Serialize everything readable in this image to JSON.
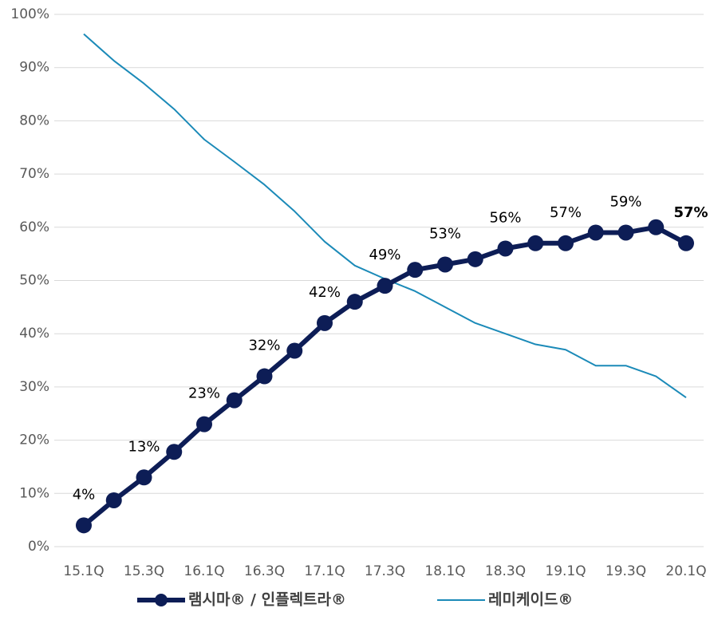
{
  "chart_data": {
    "type": "line",
    "categories": [
      "15.1Q",
      null,
      "15.3Q",
      null,
      "16.1Q",
      null,
      "16.3Q",
      null,
      "17.1Q",
      null,
      "17.3Q",
      null,
      "18.1Q",
      null,
      "18.3Q",
      null,
      "19.1Q",
      null,
      "19.3Q",
      null,
      "20.1Q"
    ],
    "series": [
      {
        "name": "램시마® / 인플렉트라®",
        "color": "#0d1d56",
        "values": [
          4,
          8.7,
          13,
          17.8,
          23,
          27.5,
          32,
          36.8,
          42,
          46,
          49,
          52,
          53,
          54,
          56,
          57,
          57,
          59,
          59,
          60,
          57
        ],
        "value_labels": [
          "4%",
          null,
          "13%",
          null,
          "23%",
          null,
          "32%",
          null,
          "42%",
          null,
          "49%",
          null,
          "53%",
          null,
          "56%",
          null,
          "57%",
          null,
          "59%",
          null,
          "57%"
        ]
      },
      {
        "name": "레미케이드®",
        "color": "#1b8ab8",
        "values": [
          96.3,
          91.3,
          87,
          82.2,
          76.5,
          72.3,
          68,
          63,
          57.3,
          52.8,
          50.3,
          48,
          45,
          42,
          40,
          38,
          37,
          34,
          34,
          32,
          28
        ]
      }
    ],
    "ylim": [
      0,
      100
    ],
    "yticks": [
      {
        "value": 0,
        "label": "0%"
      },
      {
        "value": 10,
        "label": "10%"
      },
      {
        "value": 20,
        "label": "20%"
      },
      {
        "value": 30,
        "label": "30%"
      },
      {
        "value": 40,
        "label": "40%"
      },
      {
        "value": 50,
        "label": "50%"
      },
      {
        "value": 60,
        "label": "60%"
      },
      {
        "value": 70,
        "label": "70%"
      },
      {
        "value": 80,
        "label": "80%"
      },
      {
        "value": 90,
        "label": "90%"
      },
      {
        "value": 100,
        "label": "100%"
      }
    ],
    "grid": true,
    "legend": "bottom"
  }
}
